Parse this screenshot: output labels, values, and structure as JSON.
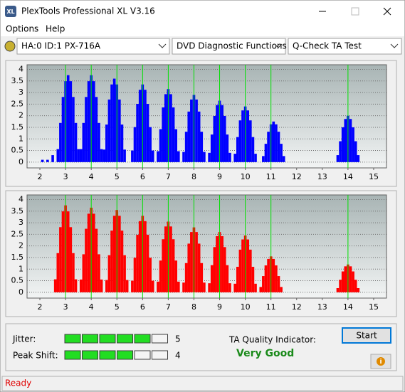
{
  "window": {
    "title": "PlexTools Professional XL V3.16"
  },
  "menu": [
    "Options",
    "Help"
  ],
  "toolbar": {
    "drive": "HA:0 ID:1  PX-716A",
    "function": "DVD Diagnostic Functions",
    "test": "Q-Check TA Test"
  },
  "chart_data": [
    {
      "type": "bar",
      "color": "#0000ff",
      "marker_color": "#00e000",
      "grid": true,
      "xlim": [
        1.5,
        15.5
      ],
      "ylim": [
        -0.25,
        4.2
      ],
      "xticks": [
        2,
        3,
        4,
        5,
        6,
        7,
        8,
        9,
        10,
        11,
        12,
        13,
        14,
        15
      ],
      "yticks": [
        0,
        0.5,
        1,
        1.5,
        2,
        2.5,
        3,
        3.5,
        4
      ],
      "markers": [
        3,
        4,
        5,
        6,
        7,
        8,
        9,
        10,
        11,
        14
      ],
      "x": [
        2.1,
        2.3,
        2.5,
        2.7,
        2.8,
        2.9,
        3.0,
        3.1,
        3.2,
        3.3,
        3.4,
        3.5,
        3.6,
        3.7,
        3.8,
        3.9,
        4.0,
        4.1,
        4.2,
        4.3,
        4.4,
        4.5,
        4.6,
        4.7,
        4.8,
        4.9,
        5.0,
        5.1,
        5.2,
        5.3,
        5.6,
        5.7,
        5.8,
        5.9,
        6.0,
        6.1,
        6.2,
        6.3,
        6.4,
        6.6,
        6.7,
        6.8,
        6.9,
        7.0,
        7.1,
        7.2,
        7.3,
        7.4,
        7.6,
        7.7,
        7.8,
        7.9,
        8.0,
        8.1,
        8.2,
        8.3,
        8.4,
        8.6,
        8.7,
        8.8,
        8.9,
        9.0,
        9.1,
        9.2,
        9.3,
        9.4,
        9.6,
        9.7,
        9.8,
        9.9,
        10.0,
        10.1,
        10.2,
        10.3,
        10.4,
        10.7,
        10.8,
        10.9,
        11.0,
        11.1,
        11.2,
        11.3,
        11.4,
        11.5,
        13.6,
        13.7,
        13.8,
        13.9,
        14.0,
        14.1,
        14.2,
        14.3,
        14.4
      ],
      "values": [
        0.1,
        0.1,
        0.3,
        0.56,
        1.69,
        2.81,
        3.49,
        3.75,
        3.49,
        2.81,
        1.69,
        0.56,
        0.56,
        1.69,
        2.81,
        3.49,
        3.75,
        3.49,
        2.81,
        1.69,
        0.56,
        0.54,
        1.62,
        2.7,
        3.35,
        3.6,
        3.35,
        2.7,
        1.62,
        0.54,
        0.5,
        1.51,
        2.51,
        3.12,
        3.35,
        3.12,
        2.51,
        1.51,
        0.5,
        0.47,
        1.42,
        2.36,
        2.93,
        3.15,
        2.93,
        2.36,
        1.42,
        0.47,
        0.44,
        1.31,
        2.18,
        2.7,
        2.9,
        2.7,
        2.18,
        1.31,
        0.44,
        0.4,
        1.19,
        1.99,
        2.46,
        2.65,
        2.46,
        1.99,
        1.19,
        0.4,
        0.36,
        1.08,
        1.8,
        2.23,
        2.4,
        2.23,
        1.8,
        1.08,
        0.36,
        0.26,
        0.79,
        1.31,
        1.63,
        1.75,
        1.63,
        1.31,
        0.79,
        0.26,
        0.3,
        0.9,
        1.5,
        1.86,
        2.0,
        1.86,
        1.5,
        0.9,
        0.3
      ]
    },
    {
      "type": "bar",
      "color": "#ff0000",
      "marker_color": "#00e000",
      "grid": true,
      "xlim": [
        1.5,
        15.5
      ],
      "ylim": [
        -0.25,
        4.2
      ],
      "xticks": [
        2,
        3,
        4,
        5,
        6,
        7,
        8,
        9,
        10,
        11,
        12,
        13,
        14,
        15
      ],
      "yticks": [
        0,
        0.5,
        1,
        1.5,
        2,
        2.5,
        3,
        3.5,
        4
      ],
      "markers": [
        3,
        4,
        5,
        6,
        7,
        8,
        9,
        10,
        11,
        14
      ],
      "x": [
        2.6,
        2.7,
        2.8,
        2.9,
        3.0,
        3.1,
        3.2,
        3.3,
        3.4,
        3.6,
        3.7,
        3.8,
        3.9,
        4.0,
        4.1,
        4.2,
        4.3,
        4.4,
        4.6,
        4.7,
        4.8,
        4.9,
        5.0,
        5.1,
        5.2,
        5.3,
        5.4,
        5.6,
        5.7,
        5.8,
        5.9,
        6.0,
        6.1,
        6.2,
        6.3,
        6.4,
        6.6,
        6.7,
        6.8,
        6.9,
        7.0,
        7.1,
        7.2,
        7.3,
        7.4,
        7.6,
        7.7,
        7.8,
        7.9,
        8.0,
        8.1,
        8.2,
        8.3,
        8.4,
        8.6,
        8.7,
        8.8,
        8.9,
        9.0,
        9.1,
        9.2,
        9.3,
        9.4,
        9.6,
        9.7,
        9.8,
        9.9,
        10.0,
        10.1,
        10.2,
        10.3,
        10.4,
        10.6,
        10.7,
        10.8,
        10.9,
        11.0,
        11.1,
        11.2,
        11.3,
        11.4,
        13.6,
        13.7,
        13.8,
        13.9,
        14.0,
        14.1,
        14.2,
        14.3,
        14.4
      ],
      "values": [
        0.56,
        1.69,
        2.81,
        3.49,
        3.75,
        3.49,
        2.81,
        1.69,
        0.56,
        0.55,
        1.64,
        2.74,
        3.39,
        3.65,
        3.39,
        2.74,
        1.64,
        0.55,
        0.53,
        1.6,
        2.66,
        3.3,
        3.55,
        3.3,
        2.66,
        1.6,
        0.53,
        0.5,
        1.49,
        2.48,
        3.07,
        3.3,
        3.07,
        2.48,
        1.49,
        0.5,
        0.46,
        1.37,
        2.29,
        2.84,
        3.05,
        2.84,
        2.29,
        1.37,
        0.46,
        0.42,
        1.26,
        2.1,
        2.6,
        2.8,
        2.6,
        2.1,
        1.26,
        0.42,
        0.39,
        1.17,
        1.95,
        2.42,
        2.6,
        2.42,
        1.95,
        1.17,
        0.39,
        0.37,
        1.1,
        1.84,
        2.28,
        2.45,
        2.28,
        1.84,
        1.1,
        0.37,
        0.23,
        0.7,
        1.16,
        1.44,
        1.55,
        1.44,
        1.16,
        0.7,
        0.23,
        0.18,
        0.54,
        0.9,
        1.12,
        1.2,
        1.12,
        0.9,
        0.54,
        0.18
      ]
    }
  ],
  "results": {
    "jitter": {
      "label": "Jitter:",
      "value": 5
    },
    "peak_shift": {
      "label": "Peak Shift:",
      "value": 4
    },
    "ta_quality": {
      "label": "TA Quality Indicator:",
      "value": "Very Good"
    }
  },
  "buttons": {
    "start": "Start"
  },
  "status": "Ready"
}
